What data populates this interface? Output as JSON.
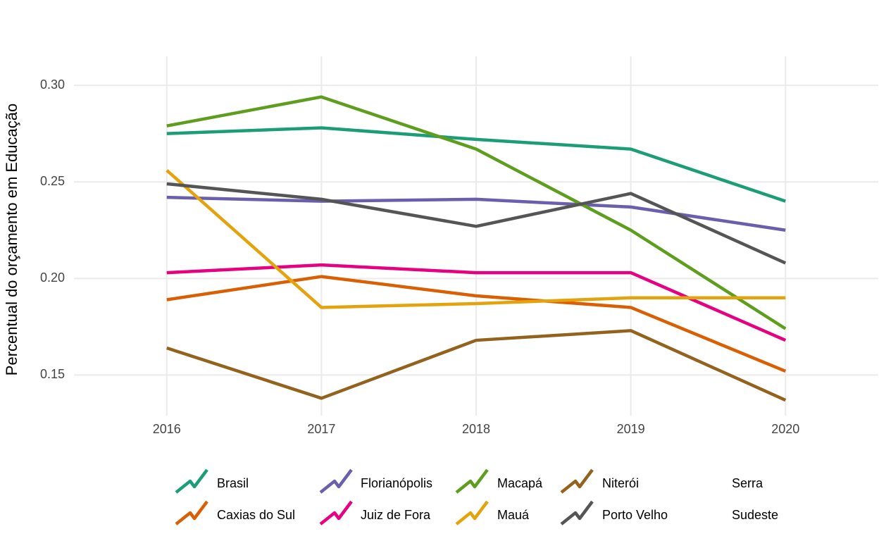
{
  "chart_data": {
    "type": "line",
    "y_label": "Percentual do orçamento em Educação",
    "x": [
      2016,
      2017,
      2018,
      2019,
      2020
    ],
    "xlim": [
      2015.4,
      2020.6
    ],
    "xticks": [
      2016,
      2017,
      2018,
      2019,
      2020
    ],
    "ylim": [
      0.129,
      0.315
    ],
    "yticks": [
      {
        "value": 0.15,
        "label": "0.15"
      },
      {
        "value": 0.2,
        "label": "0.20"
      },
      0.25,
      {
        "value": 0.3,
        "label": "0.30"
      }
    ],
    "grid": true,
    "legend": "bottom",
    "series": [
      {
        "name": "Brasil",
        "color": "#1b9e77",
        "values": [
          0.275,
          0.278,
          0.272,
          0.267,
          0.24
        ]
      },
      {
        "name": "Caxias do Sul",
        "color": "#d95f02",
        "values": [
          0.189,
          0.201,
          0.191,
          0.185,
          0.152
        ]
      },
      {
        "name": "Florianópolis",
        "color": "#6a5fad",
        "values": [
          0.242,
          0.24,
          0.241,
          0.237,
          0.225
        ]
      },
      {
        "name": "Juiz de Fora",
        "color": "#e7007f",
        "values": [
          0.203,
          0.207,
          0.203,
          0.203,
          0.168
        ]
      },
      {
        "name": "Macapá",
        "color": "#5e9e1e",
        "values": [
          0.279,
          0.294,
          0.267,
          0.225,
          0.174
        ]
      },
      {
        "name": "Mauá",
        "color": "#e3a30c",
        "values": [
          0.256,
          0.185,
          0.187,
          0.19,
          0.19
        ]
      },
      {
        "name": "Niterói",
        "color": "#93621d",
        "values": [
          0.164,
          0.138,
          0.168,
          0.173,
          0.137
        ]
      },
      {
        "name": "Porto Velho",
        "color": "#555555",
        "values": [
          0.249,
          0.241,
          0.227,
          0.244,
          0.208
        ]
      },
      {
        "name": "Serra",
        "values": [
          null,
          null,
          null,
          null,
          null
        ]
      },
      {
        "name": "Sudeste",
        "values": [
          null,
          null,
          null,
          null,
          null
        ]
      }
    ]
  }
}
